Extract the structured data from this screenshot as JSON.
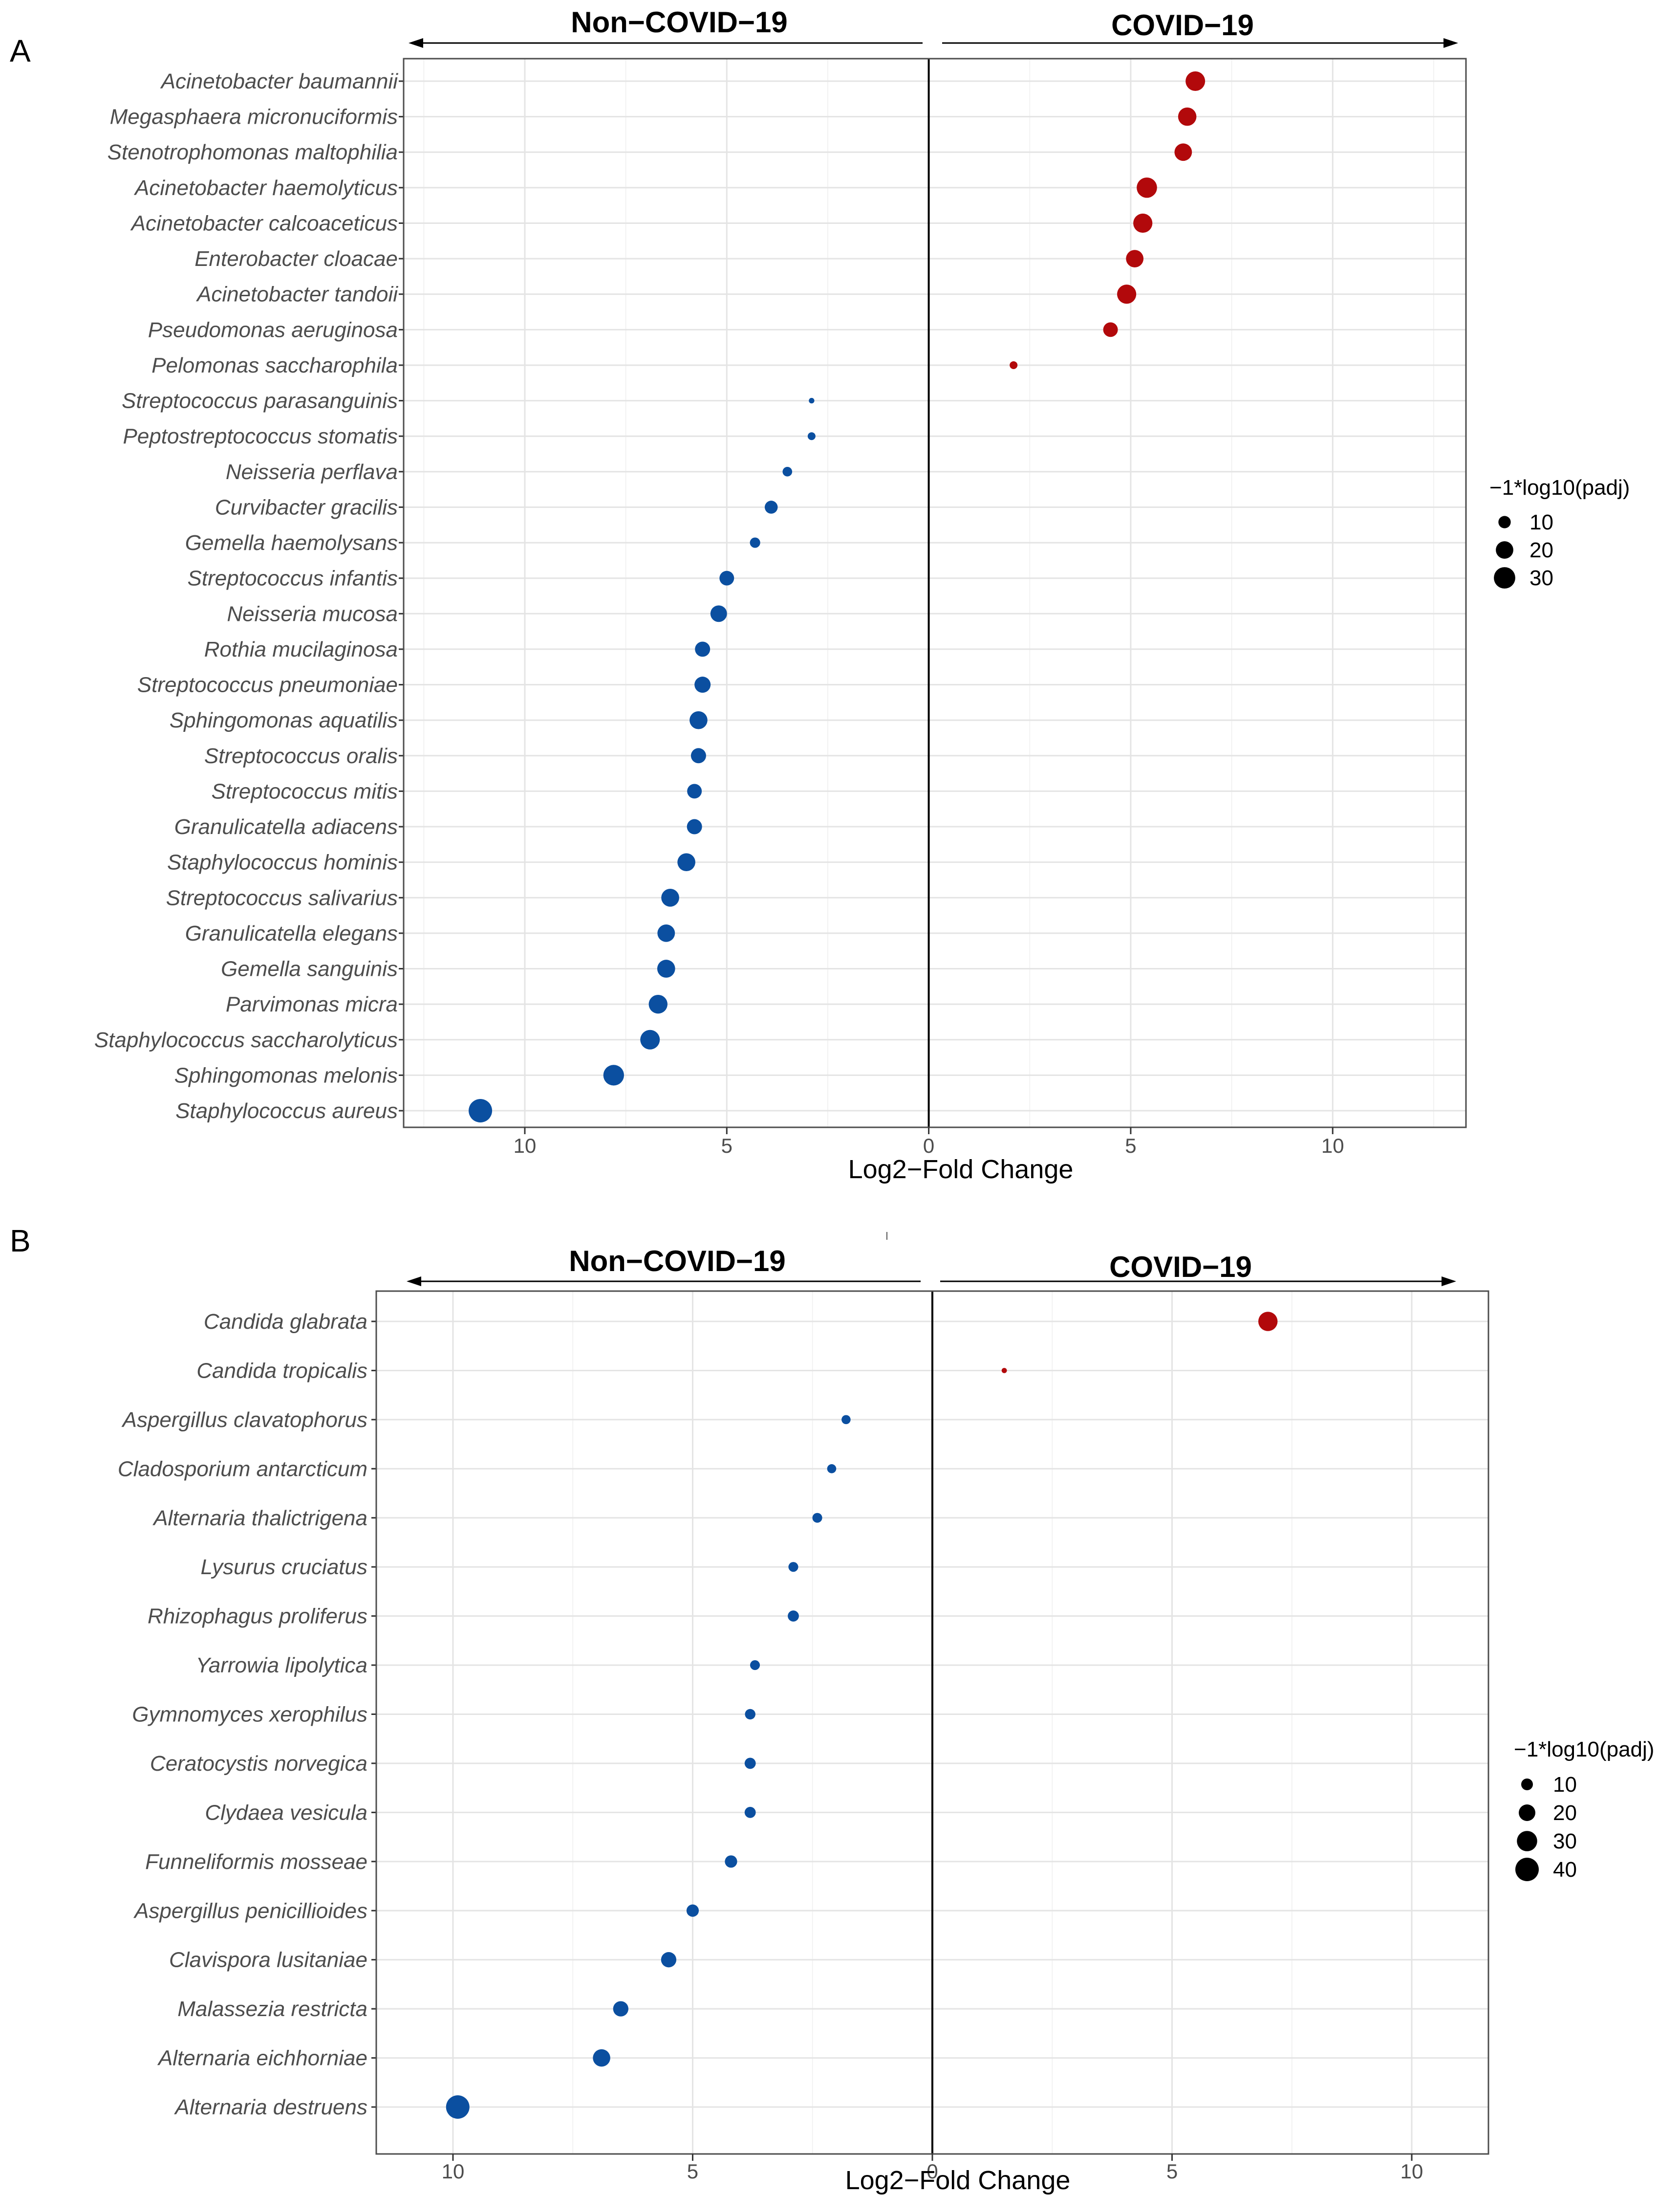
{
  "figure": {
    "colors": {
      "covid": "#b2090b",
      "noncovid": "#0b4fa0"
    }
  },
  "chart_data": [
    {
      "type": "scatter",
      "panel_label": "A",
      "left_group_label": "Non−COVID−19",
      "right_group_label": "COVID−19",
      "xlabel": "Log2−Fold Change",
      "xlim": [
        -13.0,
        13.3
      ],
      "x_ticks": [
        -10,
        -5,
        0,
        5,
        10
      ],
      "x_tick_labels": [
        "10",
        "5",
        "0",
        "5",
        "10"
      ],
      "size_legend": {
        "title": "−1*log10(padj)",
        "values": [
          10,
          20,
          30
        ],
        "labels": [
          "10",
          "20",
          "30"
        ]
      },
      "points": [
        {
          "label": "Acinetobacter baumannii",
          "x": 6.6,
          "size": 25,
          "group": "covid"
        },
        {
          "label": "Megasphaera micronuciformis",
          "x": 6.4,
          "size": 22,
          "group": "covid"
        },
        {
          "label": "Stenotrophomonas maltophilia",
          "x": 6.3,
          "size": 20,
          "group": "covid"
        },
        {
          "label": "Acinetobacter haemolyticus",
          "x": 5.4,
          "size": 27,
          "group": "covid"
        },
        {
          "label": "Acinetobacter calcoaceticus",
          "x": 5.3,
          "size": 24,
          "group": "covid"
        },
        {
          "label": "Enterobacter cloacae",
          "x": 5.1,
          "size": 20,
          "group": "covid"
        },
        {
          "label": "Acinetobacter tandoii",
          "x": 4.9,
          "size": 24,
          "group": "covid"
        },
        {
          "label": "Pseudomonas aeruginosa",
          "x": 4.5,
          "size": 14,
          "group": "covid"
        },
        {
          "label": "Pelomonas saccharophila",
          "x": 2.1,
          "size": 4,
          "group": "covid"
        },
        {
          "label": "Streptococcus parasanguinis",
          "x": -2.9,
          "size": 2,
          "group": "noncovid"
        },
        {
          "label": "Peptostreptococcus stomatis",
          "x": -2.9,
          "size": 4,
          "group": "noncovid"
        },
        {
          "label": "Neisseria perflava",
          "x": -3.5,
          "size": 6,
          "group": "noncovid"
        },
        {
          "label": "Curvibacter gracilis",
          "x": -3.9,
          "size": 11,
          "group": "noncovid"
        },
        {
          "label": "Gemella haemolysans",
          "x": -4.3,
          "size": 7,
          "group": "noncovid"
        },
        {
          "label": "Streptococcus infantis",
          "x": -5.0,
          "size": 14,
          "group": "noncovid"
        },
        {
          "label": "Neisseria mucosa",
          "x": -5.2,
          "size": 18,
          "group": "noncovid"
        },
        {
          "label": "Rothia mucilaginosa",
          "x": -5.6,
          "size": 15,
          "group": "noncovid"
        },
        {
          "label": "Streptococcus pneumoniae",
          "x": -5.6,
          "size": 17,
          "group": "noncovid"
        },
        {
          "label": "Sphingomonas aquatilis",
          "x": -5.7,
          "size": 21,
          "group": "noncovid"
        },
        {
          "label": "Streptococcus oralis",
          "x": -5.7,
          "size": 15,
          "group": "noncovid"
        },
        {
          "label": "Streptococcus mitis",
          "x": -5.8,
          "size": 14,
          "group": "noncovid"
        },
        {
          "label": "Granulicatella adiacens",
          "x": -5.8,
          "size": 15,
          "group": "noncovid"
        },
        {
          "label": "Staphylococcus hominis",
          "x": -6.0,
          "size": 21,
          "group": "noncovid"
        },
        {
          "label": "Streptococcus salivarius",
          "x": -6.4,
          "size": 21,
          "group": "noncovid"
        },
        {
          "label": "Granulicatella elegans",
          "x": -6.5,
          "size": 20,
          "group": "noncovid"
        },
        {
          "label": "Gemella sanguinis",
          "x": -6.5,
          "size": 21,
          "group": "noncovid"
        },
        {
          "label": "Parvimonas micra",
          "x": -6.7,
          "size": 23,
          "group": "noncovid"
        },
        {
          "label": "Staphylococcus saccharolyticus",
          "x": -6.9,
          "size": 25,
          "group": "noncovid"
        },
        {
          "label": "Sphingomonas melonis",
          "x": -7.8,
          "size": 28,
          "group": "noncovid"
        },
        {
          "label": "Staphylococcus aureus",
          "x": -11.1,
          "size": 36,
          "group": "noncovid"
        }
      ]
    },
    {
      "type": "scatter",
      "panel_label": "B",
      "left_group_label": "Non−COVID−19",
      "right_group_label": "COVID−19",
      "xlabel": "Log2−Fold Change",
      "xlim": [
        -11.6,
        11.6
      ],
      "x_ticks": [
        -10,
        -5,
        0,
        5,
        10
      ],
      "x_tick_labels": [
        "10",
        "5",
        "0",
        "5",
        "10"
      ],
      "size_legend": {
        "title": "−1*log10(padj)",
        "values": [
          10,
          20,
          30,
          40
        ],
        "labels": [
          "10",
          "20",
          "30",
          "40"
        ]
      },
      "points": [
        {
          "label": "Candida glabrata",
          "x": 7.0,
          "size": 27,
          "group": "covid"
        },
        {
          "label": "Candida tropicalis",
          "x": 1.5,
          "size": 2,
          "group": "covid"
        },
        {
          "label": "Aspergillus clavatophorus",
          "x": -1.8,
          "size": 6,
          "group": "noncovid"
        },
        {
          "label": "Cladosporium antarcticum",
          "x": -2.1,
          "size": 6,
          "group": "noncovid"
        },
        {
          "label": "Alternaria thalictrigena",
          "x": -2.4,
          "size": 7,
          "group": "noncovid"
        },
        {
          "label": "Lysurus cruciatus",
          "x": -2.9,
          "size": 7,
          "group": "noncovid"
        },
        {
          "label": "Rhizophagus proliferus",
          "x": -2.9,
          "size": 9,
          "group": "noncovid"
        },
        {
          "label": "Yarrowia lipolytica",
          "x": -3.7,
          "size": 7,
          "group": "noncovid"
        },
        {
          "label": "Gymnomyces xerophilus",
          "x": -3.8,
          "size": 8,
          "group": "noncovid"
        },
        {
          "label": "Ceratocystis norvegica",
          "x": -3.8,
          "size": 9,
          "group": "noncovid"
        },
        {
          "label": "Clydaea vesicula",
          "x": -3.8,
          "size": 9,
          "group": "noncovid"
        },
        {
          "label": "Funneliformis mosseae",
          "x": -4.2,
          "size": 11,
          "group": "noncovid"
        },
        {
          "label": "Aspergillus penicillioides",
          "x": -5.0,
          "size": 11,
          "group": "noncovid"
        },
        {
          "label": "Clavispora lusitaniae",
          "x": -5.5,
          "size": 17,
          "group": "noncovid"
        },
        {
          "label": "Malassezia restricta",
          "x": -6.5,
          "size": 17,
          "group": "noncovid"
        },
        {
          "label": "Alternaria eichhorniae",
          "x": -6.9,
          "size": 22,
          "group": "noncovid"
        },
        {
          "label": "Alternaria destruens",
          "x": -9.9,
          "size": 40,
          "group": "noncovid"
        }
      ]
    }
  ]
}
